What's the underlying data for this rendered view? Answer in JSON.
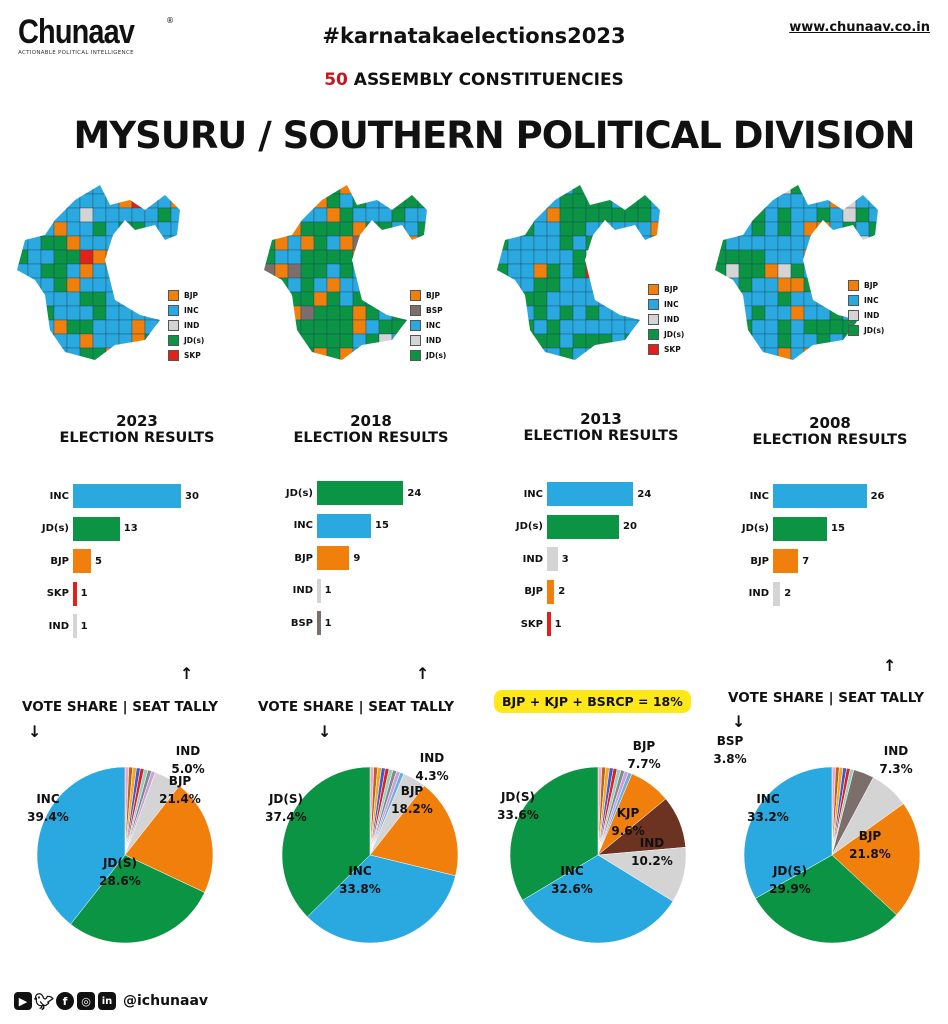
{
  "header": {
    "logo_name": "Chunaav",
    "logo_tagline": "ACTIONABLE POLITICAL INTELLIGENCE",
    "hashtag": "#karnatakaelections2023",
    "website": "www.chunaav.co.in",
    "subtitle_number": "50",
    "subtitle_text": "ASSEMBLY CONSTITUENCIES",
    "title": "MYSURU / SOUTHERN POLITICAL DIVISION"
  },
  "colors": {
    "INC": "#2aa8e0",
    "JD(s)": "#0b9444",
    "BJP": "#f07f0c",
    "IND": "#d4d4d4",
    "SKP": "#e3211b",
    "BSP": "#7b6e6b",
    "KJP": "#6c3322"
  },
  "vote_share_label": "VOTE SHARE | SEAT TALLY",
  "badge_2013": "BJP + KJP + BSRCP = 18%",
  "footer": {
    "handle": "@ichunaav",
    "icons": [
      "youtube-icon",
      "twitter-icon",
      "facebook-icon",
      "instagram-icon",
      "linkedin-icon"
    ]
  },
  "chart_data": [
    {
      "year": "2023",
      "subtitle": "ELECTION RESULTS",
      "map_legend": [
        "BJP",
        "INC",
        "IND",
        "JD(s)",
        "SKP"
      ],
      "seats": {
        "type": "bar",
        "categories": [
          "INC",
          "JD(s)",
          "BJP",
          "SKP",
          "IND"
        ],
        "values": [
          30,
          13,
          5,
          1,
          1
        ]
      },
      "vote_share": {
        "type": "pie",
        "slices": [
          {
            "name": "IND",
            "label": "IND",
            "value": 5.0,
            "text": "5.0%"
          },
          {
            "name": "BJP",
            "label": "BJP",
            "value": 21.4,
            "text": "21.4%"
          },
          {
            "name": "JD(s)",
            "label": "JD(S)",
            "value": 28.6,
            "text": "28.6%"
          },
          {
            "name": "INC",
            "label": "INC",
            "value": 39.4,
            "text": "39.4%"
          }
        ]
      }
    },
    {
      "year": "2018",
      "subtitle": "ELECTION RESULTS",
      "map_legend": [
        "BJP",
        "BSP",
        "INC",
        "IND",
        "JD(s)"
      ],
      "seats": {
        "type": "bar",
        "categories": [
          "JD(s)",
          "INC",
          "BJP",
          "IND",
          "BSP"
        ],
        "values": [
          24,
          15,
          9,
          1,
          1
        ]
      },
      "vote_share": {
        "type": "pie",
        "slices": [
          {
            "name": "IND",
            "label": "IND",
            "value": 4.3,
            "text": "4.3%"
          },
          {
            "name": "BJP",
            "label": "BJP",
            "value": 18.2,
            "text": "18.2%"
          },
          {
            "name": "INC",
            "label": "INC",
            "value": 33.8,
            "text": "33.8%"
          },
          {
            "name": "JD(s)",
            "label": "JD(S)",
            "value": 37.4,
            "text": "37.4%"
          }
        ]
      }
    },
    {
      "year": "2013",
      "subtitle": "ELECTION RESULTS",
      "map_legend": [
        "BJP",
        "INC",
        "IND",
        "JD(s)",
        "SKP"
      ],
      "seats": {
        "type": "bar",
        "categories": [
          "INC",
          "JD(s)",
          "IND",
          "BJP",
          "SKP"
        ],
        "values": [
          24,
          20,
          3,
          2,
          1
        ]
      },
      "vote_share": {
        "type": "pie",
        "slices": [
          {
            "name": "BJP",
            "label": "BJP",
            "value": 7.7,
            "text": "7.7%"
          },
          {
            "name": "KJP",
            "label": "KJP",
            "value": 9.6,
            "text": "9.6%"
          },
          {
            "name": "IND",
            "label": "IND",
            "value": 10.2,
            "text": "10.2%"
          },
          {
            "name": "INC",
            "label": "INC",
            "value": 32.6,
            "text": "32.6%"
          },
          {
            "name": "JD(s)",
            "label": "JD(S)",
            "value": 33.6,
            "text": "33.6%"
          }
        ]
      }
    },
    {
      "year": "2008",
      "subtitle": "ELECTION RESULTS",
      "map_legend": [
        "BJP",
        "INC",
        "IND",
        "JD(s)"
      ],
      "seats": {
        "type": "bar",
        "categories": [
          "INC",
          "JD(s)",
          "BJP",
          "IND"
        ],
        "values": [
          26,
          15,
          7,
          2
        ]
      },
      "vote_share": {
        "type": "pie",
        "slices": [
          {
            "name": "BSP",
            "label": "BSP",
            "value": 3.8,
            "text": "3.8%"
          },
          {
            "name": "IND",
            "label": "IND",
            "value": 7.3,
            "text": "7.3%"
          },
          {
            "name": "BJP",
            "label": "BJP",
            "value": 21.8,
            "text": "21.8%"
          },
          {
            "name": "JD(s)",
            "label": "JD(S)",
            "value": 29.9,
            "text": "29.9%"
          },
          {
            "name": "INC",
            "label": "INC",
            "value": 33.2,
            "text": "33.2%"
          }
        ]
      }
    }
  ]
}
